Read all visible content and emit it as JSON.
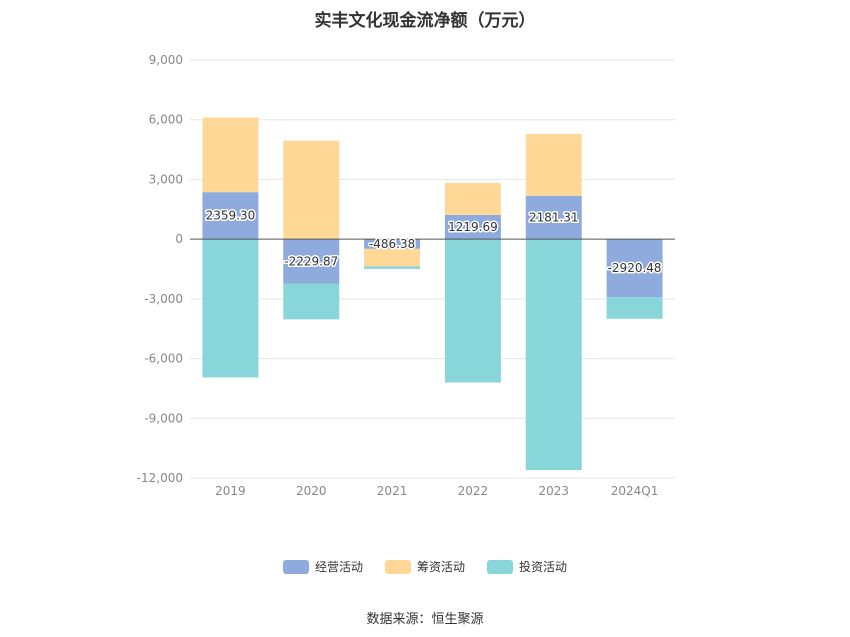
{
  "title": "实丰文化现金流净额（万元）",
  "source": "数据来源：恒生聚源",
  "chart_data": {
    "type": "bar",
    "stacked": true,
    "categories": [
      "2019",
      "2020",
      "2021",
      "2022",
      "2023",
      "2024Q1"
    ],
    "ylim": [
      -12000,
      9000
    ],
    "yticks": [
      9000,
      6000,
      3000,
      0,
      -3000,
      -6000,
      -9000,
      -12000
    ],
    "ytick_labels": [
      "9,000",
      "6,000",
      "3,000",
      "0",
      "-3,000",
      "-6,000",
      "-9,000",
      "-12,000"
    ],
    "grid": true,
    "legend_position": "bottom",
    "series": [
      {
        "name": "经营活动",
        "color": "#8faadc",
        "values": [
          2359.3,
          -2229.87,
          -486.38,
          1219.69,
          2181.31,
          -2920.48
        ],
        "labels": [
          "2359.30",
          "-2229.87",
          "-486.38",
          "1219.69",
          "2181.31",
          "-2920.48"
        ]
      },
      {
        "name": "筹资活动",
        "color": "#ffd898",
        "values": [
          3750,
          4950,
          -880,
          1600,
          3100,
          0
        ]
      },
      {
        "name": "投资活动",
        "color": "#88d6da",
        "values": [
          -6950,
          -1800,
          -130,
          -7200,
          -11600,
          -1080
        ]
      }
    ]
  }
}
